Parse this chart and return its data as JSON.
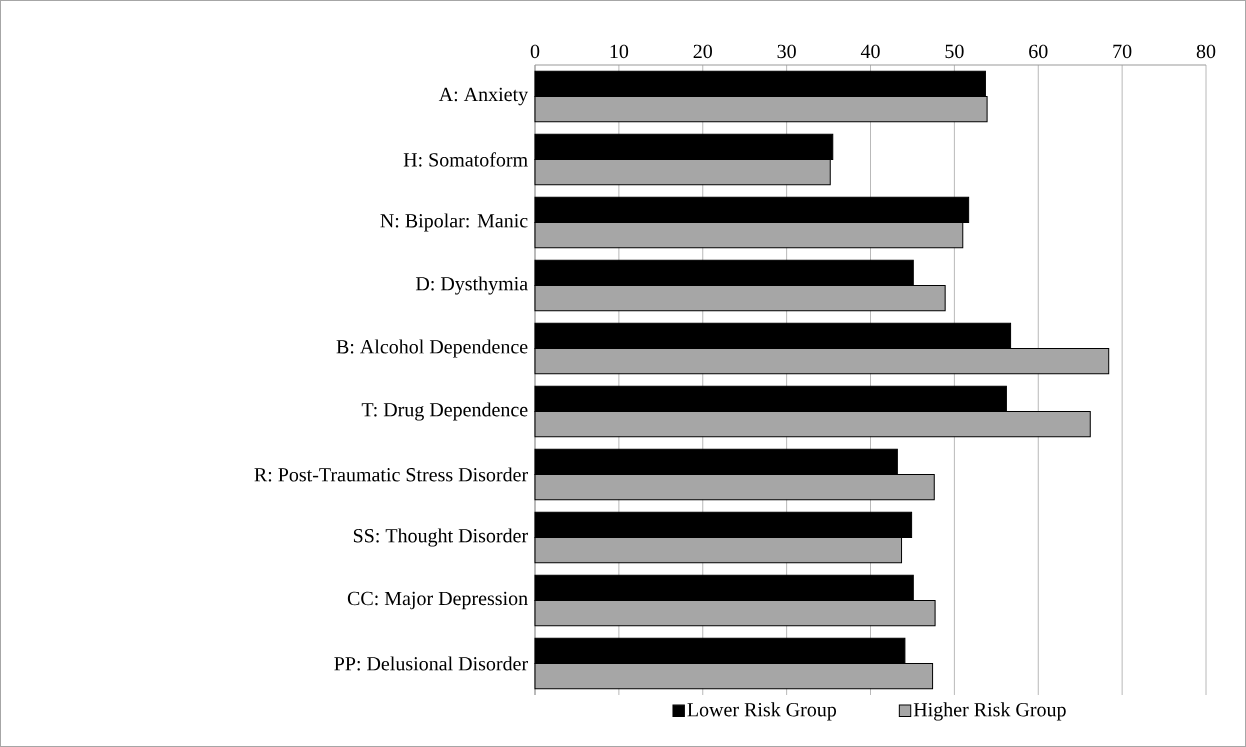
{
  "chart_data": {
    "type": "bar",
    "orientation": "horizontal",
    "categories": [
      "A: Anxiety",
      "H: Somatoform",
      "N: Bipolar: Manic",
      "D: Dysthymia",
      "B: Alcohol Dependence",
      "T: Drug Dependence",
      "R: Post-Traumatic Stress Disorder",
      "SS: Thought Disorder",
      "CC: Major Depression",
      "PP: Delusional Disorder"
    ],
    "series": [
      {
        "name": "Lower Risk Group",
        "color": "#000000",
        "values": [
          53.7,
          35.5,
          51.7,
          45.1,
          56.7,
          56.2,
          43.2,
          44.9,
          45.1,
          44.1
        ]
      },
      {
        "name": "Higher Risk Group",
        "color": "#a6a6a6",
        "values": [
          53.9,
          35.2,
          51.0,
          48.9,
          68.4,
          66.2,
          47.6,
          43.7,
          47.7,
          47.4
        ]
      }
    ],
    "xlim": [
      0,
      80
    ],
    "xticks": [
      0,
      10,
      20,
      30,
      40,
      50,
      60,
      70,
      80
    ],
    "grid": "x",
    "legend": "bottom"
  }
}
